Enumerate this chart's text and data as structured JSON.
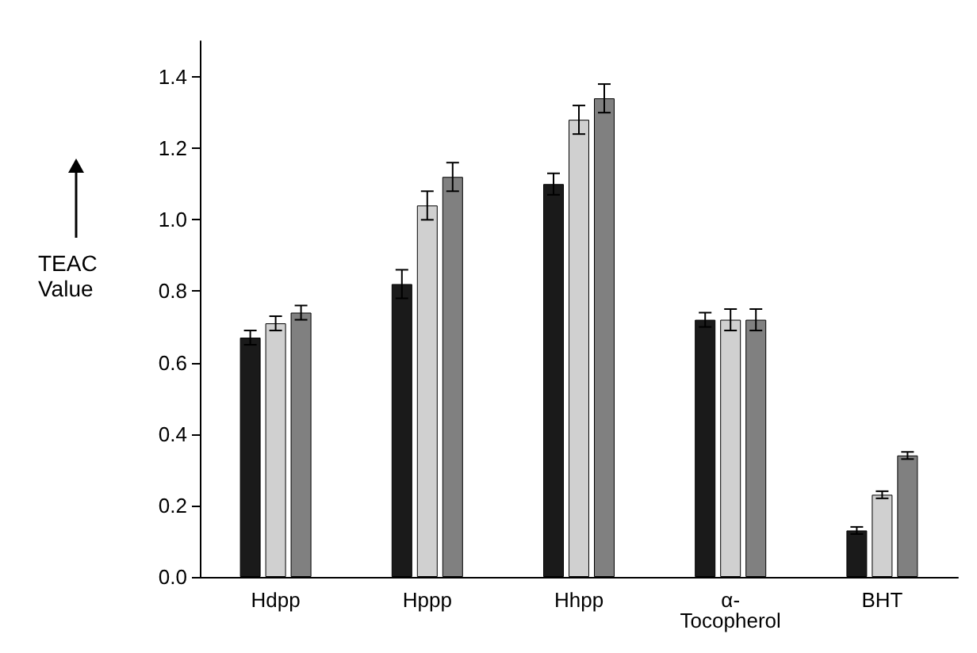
{
  "chart_data": {
    "type": "bar",
    "ylabel": "TEAC Value",
    "categories": [
      "Hdpp",
      "Hppp",
      "Hhpp",
      "α-\nTocopherol",
      "BHT"
    ],
    "series": [
      {
        "color": "#1a1a1a",
        "values": [
          0.67,
          0.82,
          1.1,
          0.72,
          0.13
        ],
        "errors": [
          0.02,
          0.04,
          0.03,
          0.02,
          0.01
        ]
      },
      {
        "color": "#d0d0d0",
        "values": [
          0.71,
          1.04,
          1.28,
          0.72,
          0.23
        ],
        "errors": [
          0.02,
          0.04,
          0.04,
          0.03,
          0.01
        ]
      },
      {
        "color": "#808080",
        "values": [
          0.74,
          1.12,
          1.34,
          0.72,
          0.34
        ],
        "errors": [
          0.02,
          0.04,
          0.04,
          0.03,
          0.01
        ]
      }
    ],
    "ylim": [
      0,
      1.5
    ],
    "yticks": [
      {
        "value": 0,
        "label": "0.0"
      },
      {
        "value": 0.2,
        "label": "0.2"
      },
      {
        "value": 0.4,
        "label": "0.4"
      },
      {
        "value": 0.6,
        "label": "0.6"
      },
      {
        "value": 0.8,
        "label": "0.8"
      },
      {
        "value": 1.0,
        "label": "1.0"
      },
      {
        "value": 1.2,
        "label": "1.2"
      },
      {
        "value": 1.4,
        "label": "1.4"
      }
    ],
    "grid": false
  }
}
